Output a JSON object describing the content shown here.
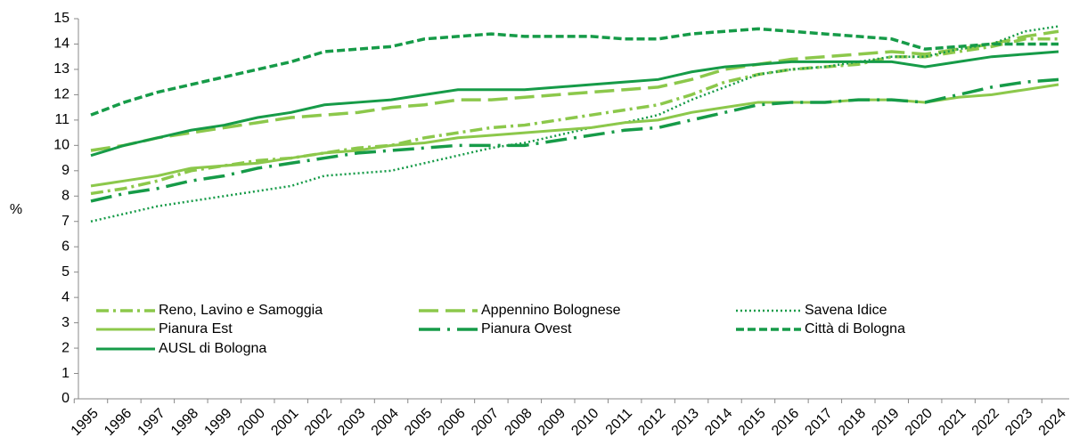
{
  "chart_data": {
    "type": "line",
    "y_label": "%",
    "categories": [
      "1995",
      "1996",
      "1997",
      "1998",
      "1999",
      "2000",
      "2001",
      "2002",
      "2003",
      "2004",
      "2005",
      "2006",
      "2007",
      "2008",
      "2009",
      "2010",
      "2011",
      "2012",
      "2013",
      "2014",
      "2015",
      "2016",
      "2017",
      "2018",
      "2019",
      "2020",
      "2021",
      "2022",
      "2023",
      "2024"
    ],
    "ylim": [
      0,
      15
    ],
    "yticks": [
      0,
      1,
      2,
      3,
      4,
      5,
      6,
      7,
      8,
      9,
      10,
      11,
      12,
      13,
      14,
      15
    ],
    "series": [
      {
        "name": "Reno, Lavino e Samoggia",
        "color": "#8cc84b",
        "dash": "dashdot",
        "values": [
          8.1,
          8.3,
          8.6,
          9.0,
          9.2,
          9.4,
          9.5,
          9.7,
          9.9,
          10.0,
          10.3,
          10.5,
          10.7,
          10.8,
          11.0,
          11.2,
          11.4,
          11.6,
          12.0,
          12.5,
          12.8,
          13.0,
          13.1,
          13.2,
          13.5,
          13.5,
          13.7,
          13.9,
          14.2,
          14.2
        ]
      },
      {
        "name": "Appennino Bolognese",
        "color": "#8cc84b",
        "dash": "longdash",
        "values": [
          9.8,
          10.0,
          10.3,
          10.5,
          10.7,
          10.9,
          11.1,
          11.2,
          11.3,
          11.5,
          11.6,
          11.8,
          11.8,
          11.9,
          12.0,
          12.1,
          12.2,
          12.3,
          12.6,
          13.0,
          13.2,
          13.4,
          13.5,
          13.6,
          13.7,
          13.6,
          13.8,
          14.0,
          14.3,
          14.5
        ]
      },
      {
        "name": "Savena Idice",
        "color": "#169b48",
        "dash": "dot",
        "values": [
          7.0,
          7.3,
          7.6,
          7.8,
          8.0,
          8.2,
          8.4,
          8.8,
          8.9,
          9.0,
          9.3,
          9.6,
          9.9,
          10.1,
          10.4,
          10.7,
          10.9,
          11.2,
          11.8,
          12.3,
          12.8,
          13.0,
          13.1,
          13.3,
          13.5,
          13.5,
          13.8,
          14.0,
          14.5,
          14.7
        ]
      },
      {
        "name": "Pianura Est",
        "color": "#8cc84b",
        "dash": "solid",
        "values": [
          8.4,
          8.6,
          8.8,
          9.1,
          9.2,
          9.3,
          9.5,
          9.7,
          9.8,
          10.0,
          10.1,
          10.3,
          10.4,
          10.5,
          10.6,
          10.7,
          10.9,
          11.0,
          11.3,
          11.5,
          11.7,
          11.7,
          11.7,
          11.8,
          11.8,
          11.7,
          11.9,
          12.0,
          12.2,
          12.4
        ]
      },
      {
        "name": "Pianura Ovest",
        "color": "#169b48",
        "dash": "longdashdot",
        "values": [
          7.8,
          8.1,
          8.3,
          8.6,
          8.8,
          9.1,
          9.3,
          9.5,
          9.7,
          9.8,
          9.9,
          10.0,
          10.0,
          10.0,
          10.2,
          10.4,
          10.6,
          10.7,
          11.0,
          11.3,
          11.6,
          11.7,
          11.7,
          11.8,
          11.8,
          11.7,
          12.0,
          12.3,
          12.5,
          12.6
        ]
      },
      {
        "name": "Città di Bologna",
        "color": "#169b48",
        "dash": "dash",
        "values": [
          11.2,
          11.7,
          12.1,
          12.4,
          12.7,
          13.0,
          13.3,
          13.7,
          13.8,
          13.9,
          14.2,
          14.3,
          14.4,
          14.3,
          14.3,
          14.3,
          14.2,
          14.2,
          14.4,
          14.5,
          14.6,
          14.5,
          14.4,
          14.3,
          14.2,
          13.8,
          13.9,
          14.0,
          14.0,
          14.0
        ]
      },
      {
        "name": "AUSL di Bologna",
        "color": "#169b48",
        "dash": "solid",
        "values": [
          9.6,
          10.0,
          10.3,
          10.6,
          10.8,
          11.1,
          11.3,
          11.6,
          11.7,
          11.8,
          12.0,
          12.2,
          12.2,
          12.2,
          12.3,
          12.4,
          12.5,
          12.6,
          12.9,
          13.1,
          13.2,
          13.3,
          13.3,
          13.3,
          13.3,
          13.1,
          13.3,
          13.5,
          13.6,
          13.7
        ]
      }
    ]
  }
}
